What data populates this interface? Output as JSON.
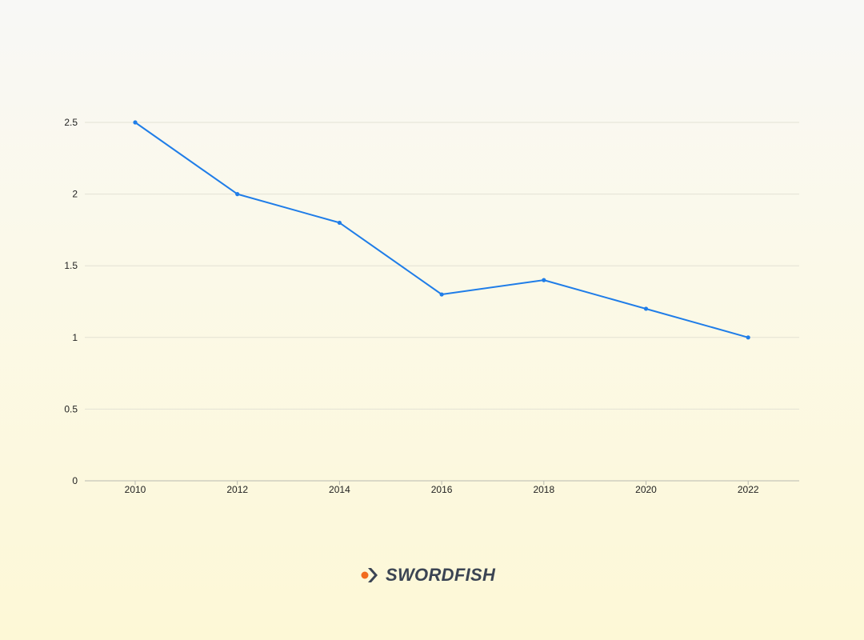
{
  "colors": {
    "line": "#1f7de8",
    "grid": "#e3e1d4",
    "axis": "#b9b9b0",
    "tick_text": "#222222",
    "logo_text": "#3b4453",
    "logo_dot": "#f26b1d",
    "logo_chevron": "#3b4453"
  },
  "chart_data": {
    "type": "line",
    "title": "",
    "xlabel": "",
    "ylabel": "",
    "x": [
      "2010",
      "2012",
      "2014",
      "2016",
      "2018",
      "2020",
      "2022"
    ],
    "series": [
      {
        "values": [
          2.5,
          2.0,
          1.8,
          1.3,
          1.4,
          1.2,
          1.0
        ],
        "color": "#1f7de8"
      }
    ],
    "ylim": [
      0,
      2.5
    ],
    "yticks": [
      "0",
      "0.5",
      "1",
      "1.5",
      "2",
      "2.5"
    ],
    "grid": true,
    "legend": "none"
  },
  "brand": {
    "name": "SWORDFISH"
  }
}
